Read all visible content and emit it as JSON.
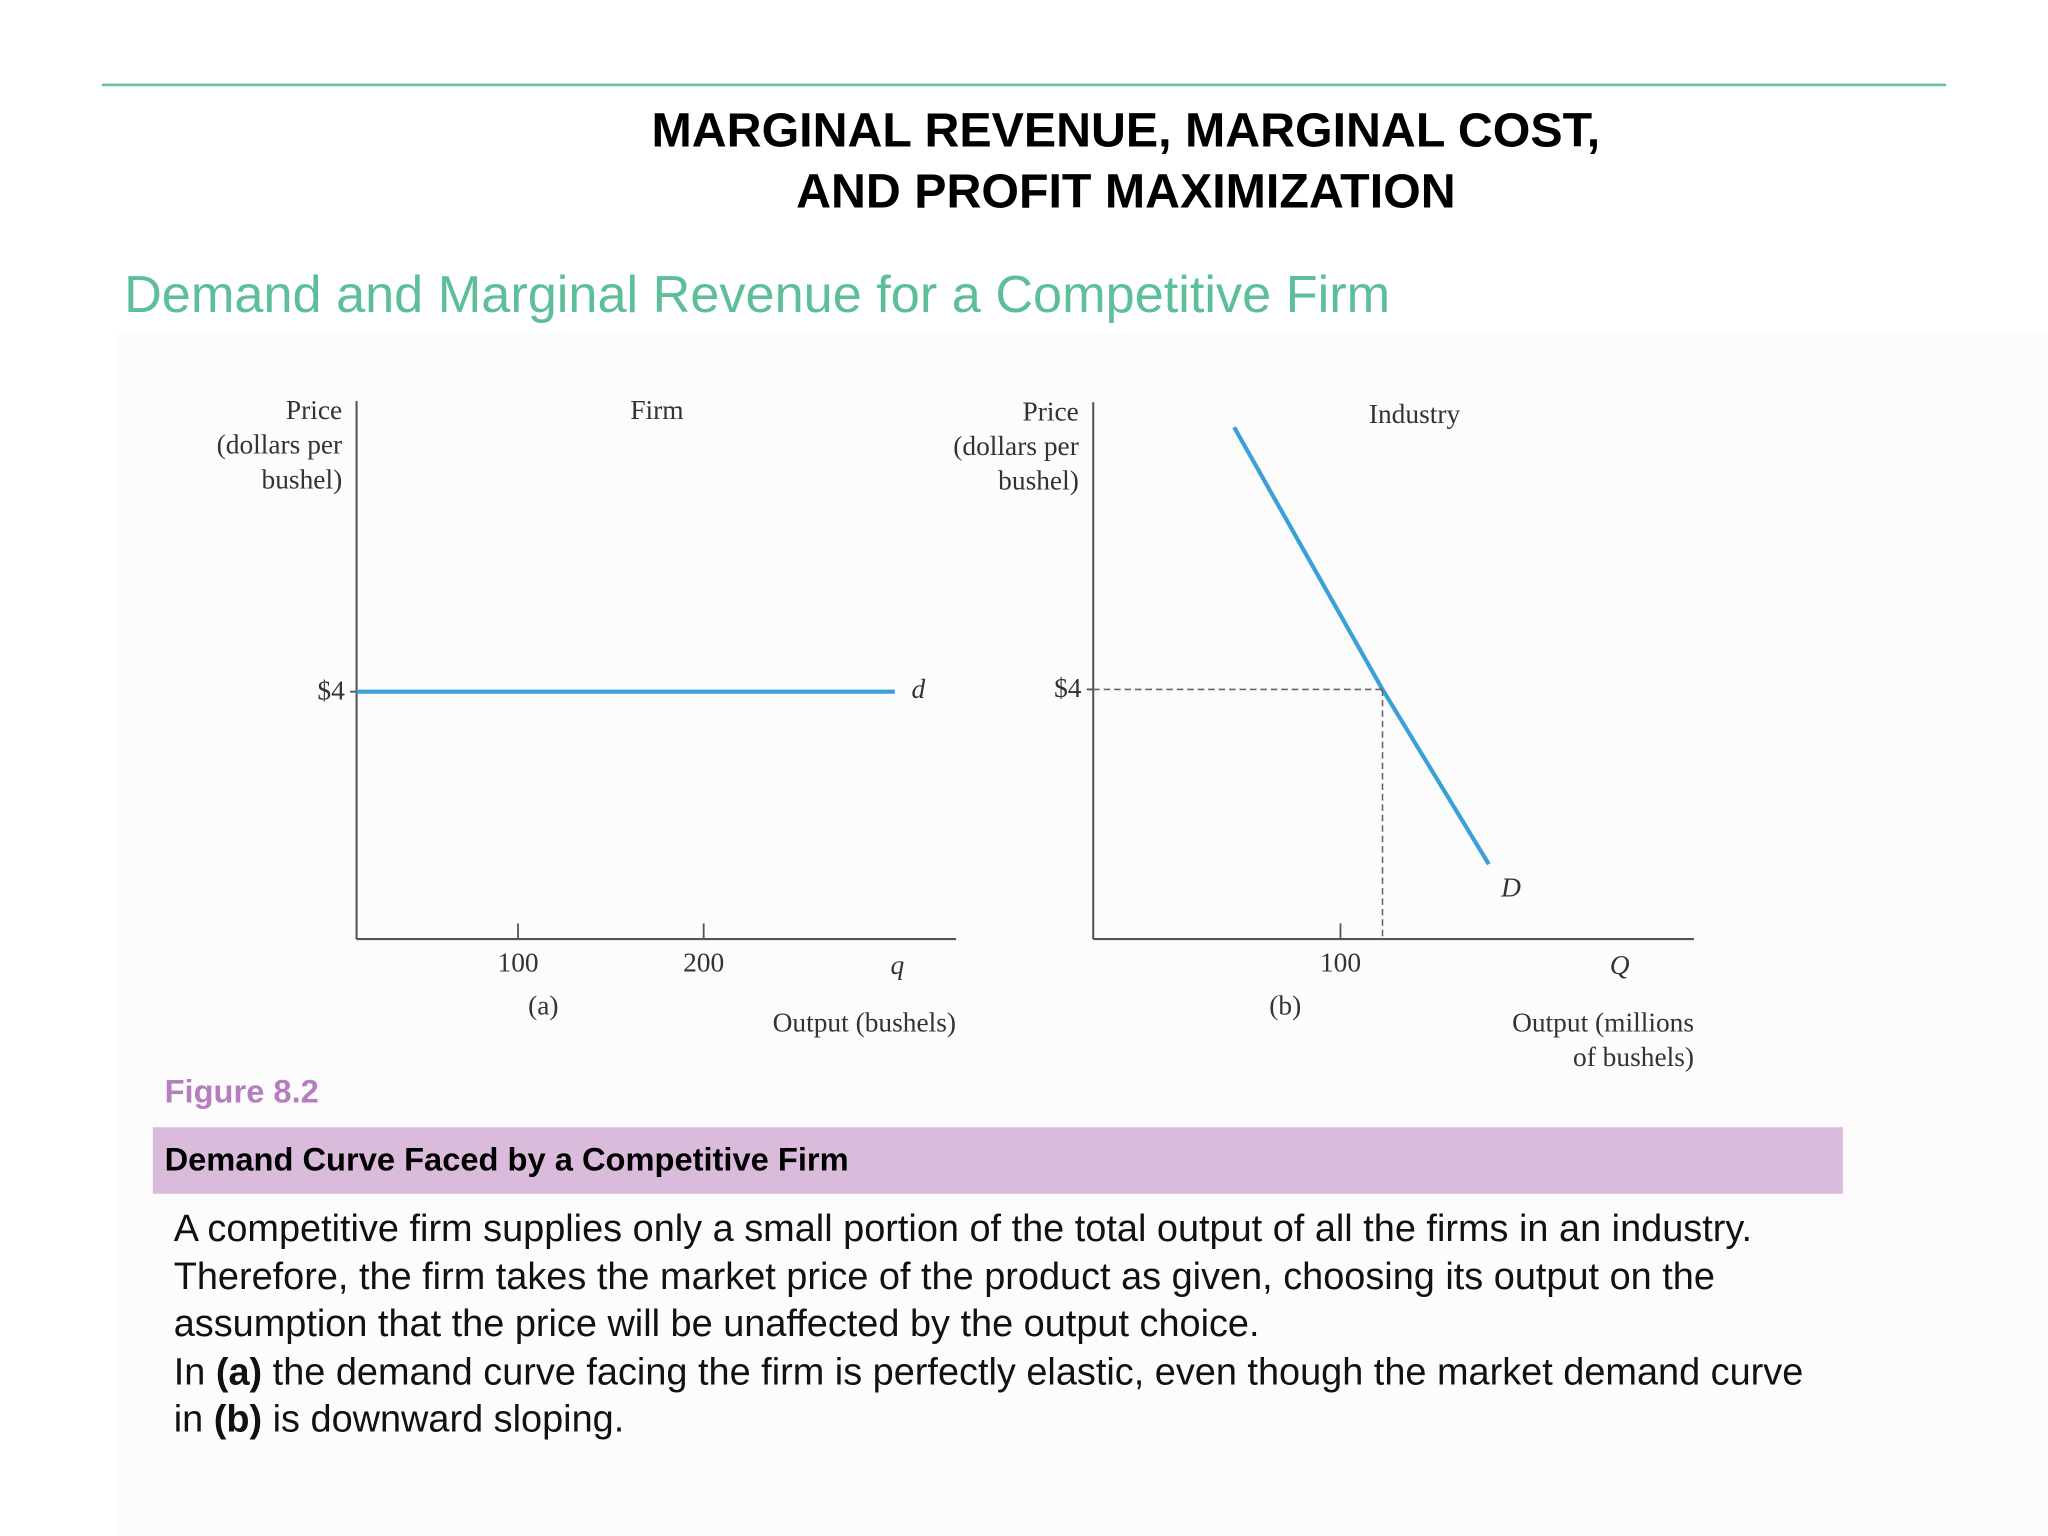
{
  "header": {
    "title_lines": [
      "MARGINAL REVENUE, MARGINAL COST,",
      "AND PROFIT MAXIMIZATION"
    ],
    "subtitle": "Demand and Marginal Revenue for a Competitive Firm"
  },
  "chart_data": [
    {
      "type": "line",
      "title": "Firm",
      "panel": "(a)",
      "ylabel": [
        "Price",
        "(dollars per",
        "bushel)"
      ],
      "xlabel": [
        "Output (bushels)"
      ],
      "x_end_label": "q",
      "xlim": [
        13,
        336
      ],
      "xticks": [
        100,
        200
      ],
      "ylim": [
        0,
        8.7
      ],
      "yticks": [
        {
          "value": 4,
          "label": "$4"
        }
      ],
      "series": [
        {
          "name": "d",
          "color": "#3b9fd8",
          "x": [
            13,
            303
          ],
          "values": [
            4,
            4
          ]
        }
      ]
    },
    {
      "type": "line",
      "title": "Industry",
      "panel": "(b)",
      "ylabel": [
        "Price",
        "(dollars per",
        "bushel)"
      ],
      "xlabel": [
        "Output (millions",
        "of bushels)"
      ],
      "x_end_label": "Q",
      "xlim": [
        0,
        243
      ],
      "xticks": [
        100
      ],
      "ylim": [
        0,
        8.6
      ],
      "yticks": [
        {
          "value": 4,
          "label": "$4"
        }
      ],
      "series": [
        {
          "name": "D",
          "color": "#3b9fd8",
          "x": [
            57,
            117,
            160
          ],
          "values": [
            8.2,
            4,
            1.2
          ]
        }
      ]
    }
  ],
  "figure": {
    "label": "Figure 8.2",
    "caption_title": "Demand Curve Faced by a Competitive Firm",
    "description": [
      "A competitive firm supplies only a small portion of the total output of all the firms in an industry. Therefore, the firm takes the market price of the product as given, choosing its output on the assumption that the price will be unaffected by the output choice.",
      [
        "In ",
        "(a)",
        " the demand curve facing the firm is perfectly elastic, even though the market demand curve in ",
        "(b)",
        " is downward sloping."
      ]
    ]
  }
}
